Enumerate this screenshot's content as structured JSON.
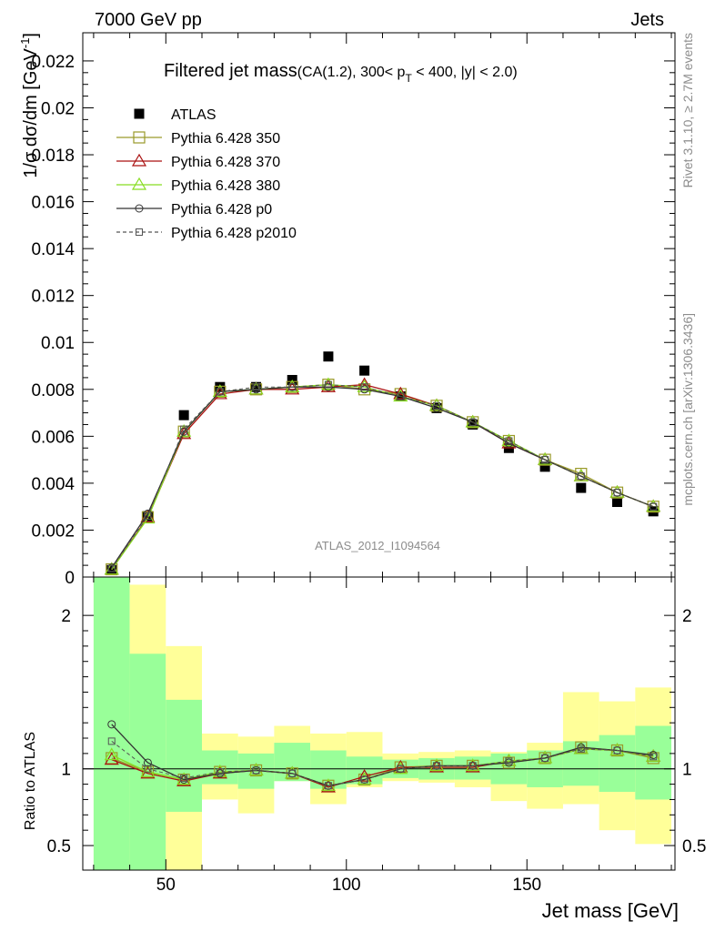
{
  "header": {
    "left": "7000 GeV pp",
    "right": "Jets"
  },
  "side_labels": {
    "rivet": "Rivet 3.1.10, ≥ 2.7M events",
    "mcplots": "mcplots.cern.ch [arXiv:1306.3436]"
  },
  "chart_data": [
    {
      "type": "scatter",
      "title": "Filtered jet mass",
      "title_suffix": "(CA(1.2), 300< p",
      "title_sub": "T",
      "title_tail": " < 400, |y| < 2.0)",
      "watermark": "ATLAS_2012_I1094564",
      "ylabel": "1/σ dσ/dm [GeV",
      "ylabel_sup": "-1",
      "ylabel_tail": "]",
      "xlim": [
        27,
        191
      ],
      "ylim": [
        0,
        0.0232
      ],
      "yticks": [
        {
          "v": 0,
          "label": "0"
        },
        {
          "v": 0.002,
          "label": "0.002"
        },
        {
          "v": 0.004,
          "label": "0.004"
        },
        {
          "v": 0.006,
          "label": "0.006"
        },
        {
          "v": 0.008,
          "label": "0.008"
        },
        {
          "v": 0.01,
          "label": "0.01"
        },
        {
          "v": 0.012,
          "label": "0.012"
        },
        {
          "v": 0.014,
          "label": "0.014"
        },
        {
          "v": 0.016,
          "label": "0.016"
        },
        {
          "v": 0.018,
          "label": "0.018"
        },
        {
          "v": 0.02,
          "label": "0.02"
        },
        {
          "v": 0.022,
          "label": "0.022"
        }
      ],
      "x": [
        35,
        45,
        55,
        65,
        75,
        85,
        95,
        105,
        115,
        125,
        135,
        145,
        155,
        165,
        175,
        185
      ],
      "series": [
        {
          "name": "ATLAS",
          "color": "#000000",
          "marker": "filled-square",
          "line": "none",
          "values": [
            0.0003,
            0.0026,
            0.0069,
            0.0081,
            0.0081,
            0.0084,
            0.0094,
            0.0088,
            0.0077,
            0.0072,
            0.0065,
            0.0055,
            0.0047,
            0.0038,
            0.0032,
            0.0028
          ]
        },
        {
          "name": "Pythia 6.428 350",
          "color": "#9a9a2a",
          "marker": "open-square",
          "line": "solid",
          "values": [
            0.00033,
            0.00255,
            0.0062,
            0.0079,
            0.008,
            0.0081,
            0.0082,
            0.008,
            0.0078,
            0.0073,
            0.0066,
            0.0058,
            0.005,
            0.0044,
            0.0036,
            0.003
          ]
        },
        {
          "name": "Pythia 6.428 370",
          "color": "#aa1111",
          "marker": "open-triangle",
          "line": "solid",
          "values": [
            0.00032,
            0.00255,
            0.0061,
            0.0078,
            0.008,
            0.008,
            0.0081,
            0.0082,
            0.0078,
            0.0073,
            0.0066,
            0.0057,
            0.005,
            0.0043,
            0.0036,
            0.003
          ]
        },
        {
          "name": "Pythia 6.428 380",
          "color": "#88dd22",
          "marker": "open-triangle",
          "line": "solid",
          "values": [
            0.00032,
            0.0025,
            0.0062,
            0.0079,
            0.008,
            0.0081,
            0.0082,
            0.0081,
            0.0077,
            0.0073,
            0.0066,
            0.0058,
            0.005,
            0.0043,
            0.0036,
            0.003
          ]
        },
        {
          "name": "Pythia 6.428 p0",
          "color": "#333333",
          "marker": "open-circle",
          "line": "solid",
          "values": [
            0.0004,
            0.0027,
            0.0062,
            0.0079,
            0.008,
            0.0081,
            0.0081,
            0.008,
            0.0077,
            0.0072,
            0.0066,
            0.0057,
            0.005,
            0.0043,
            0.0036,
            0.003
          ]
        },
        {
          "name": "Pythia 6.428 p2010",
          "color": "#555555",
          "marker": "open-square-small",
          "line": "dashed",
          "values": [
            0.00036,
            0.0026,
            0.0063,
            0.0079,
            0.0081,
            0.0081,
            0.0082,
            0.0081,
            0.0077,
            0.0073,
            0.0066,
            0.0058,
            0.005,
            0.0043,
            0.0036,
            0.003
          ]
        }
      ]
    },
    {
      "type": "line",
      "ylabel": "Ratio to ATLAS",
      "xlabel": "Jet mass [GeV]",
      "xlim": [
        27,
        191
      ],
      "ylim": [
        0.34,
        2.25
      ],
      "xticks": [
        {
          "v": 50,
          "label": "50"
        },
        {
          "v": 100,
          "label": "100"
        },
        {
          "v": 150,
          "label": "150"
        }
      ],
      "yticks": [
        {
          "v": 0.5,
          "label": "0.5"
        },
        {
          "v": 1,
          "label": "1"
        },
        {
          "v": 2,
          "label": "2"
        }
      ],
      "bands": [
        {
          "x0": 30,
          "x1": 40,
          "g_lo": 0.34,
          "g_hi": 2.25,
          "y_lo": 0.34,
          "y_hi": 2.25
        },
        {
          "x0": 40,
          "x1": 50,
          "g_lo": 0.34,
          "g_hi": 1.75,
          "y_lo": 0.34,
          "y_hi": 2.2
        },
        {
          "x0": 50,
          "x1": 60,
          "g_lo": 0.72,
          "g_hi": 1.45,
          "y_lo": 0.34,
          "y_hi": 1.8
        },
        {
          "x0": 60,
          "x1": 70,
          "g_lo": 0.9,
          "g_hi": 1.12,
          "y_lo": 0.8,
          "y_hi": 1.23
        },
        {
          "x0": 70,
          "x1": 80,
          "g_lo": 0.87,
          "g_hi": 1.1,
          "y_lo": 0.71,
          "y_hi": 1.21
        },
        {
          "x0": 80,
          "x1": 90,
          "g_lo": 0.92,
          "g_hi": 1.17,
          "y_lo": 0.92,
          "y_hi": 1.28
        },
        {
          "x0": 90,
          "x1": 100,
          "g_lo": 0.87,
          "g_hi": 1.12,
          "y_lo": 0.77,
          "y_hi": 1.23
        },
        {
          "x0": 100,
          "x1": 110,
          "g_lo": 0.9,
          "g_hi": 1.08,
          "y_lo": 0.88,
          "y_hi": 1.24
        },
        {
          "x0": 110,
          "x1": 120,
          "g_lo": 0.94,
          "g_hi": 1.06,
          "y_lo": 0.92,
          "y_hi": 1.1
        },
        {
          "x0": 120,
          "x1": 130,
          "g_lo": 0.93,
          "g_hi": 1.07,
          "y_lo": 0.91,
          "y_hi": 1.11
        },
        {
          "x0": 130,
          "x1": 140,
          "g_lo": 0.93,
          "g_hi": 1.08,
          "y_lo": 0.88,
          "y_hi": 1.12
        },
        {
          "x0": 140,
          "x1": 150,
          "g_lo": 0.9,
          "g_hi": 1.1,
          "y_lo": 0.79,
          "y_hi": 1.11
        },
        {
          "x0": 150,
          "x1": 160,
          "g_lo": 0.88,
          "g_hi": 1.12,
          "y_lo": 0.74,
          "y_hi": 1.17
        },
        {
          "x0": 160,
          "x1": 170,
          "g_lo": 0.89,
          "g_hi": 1.18,
          "y_lo": 0.77,
          "y_hi": 1.5
        },
        {
          "x0": 170,
          "x1": 180,
          "g_lo": 0.85,
          "g_hi": 1.22,
          "y_lo": 0.6,
          "y_hi": 1.44
        },
        {
          "x0": 180,
          "x1": 190,
          "g_lo": 0.8,
          "g_hi": 1.28,
          "y_lo": 0.51,
          "y_hi": 1.53
        }
      ],
      "x": [
        35,
        45,
        55,
        65,
        75,
        85,
        95,
        105,
        115,
        125,
        135,
        145,
        155,
        165,
        175,
        185
      ],
      "series": [
        {
          "name": "Pythia 6.428 350",
          "color": "#9a9a2a",
          "marker": "open-square",
          "line": "solid",
          "values": [
            1.07,
            0.98,
            0.93,
            0.98,
            0.99,
            0.97,
            0.89,
            0.93,
            1.01,
            1.02,
            1.02,
            1.04,
            1.07,
            1.14,
            1.12,
            1.07
          ]
        },
        {
          "name": "Pythia 6.428 370",
          "color": "#aa1111",
          "marker": "open-triangle",
          "line": "solid",
          "values": [
            1.06,
            0.97,
            0.92,
            0.97,
            0.99,
            0.97,
            0.88,
            0.95,
            1.01,
            1.01,
            1.01,
            1.05,
            1.07,
            1.13,
            1.12,
            1.08
          ]
        },
        {
          "name": "Pythia 6.428 380",
          "color": "#88dd22",
          "marker": "open-triangle",
          "line": "solid",
          "values": [
            1.09,
            0.98,
            0.93,
            0.98,
            0.99,
            0.97,
            0.89,
            0.93,
            1.0,
            1.02,
            1.02,
            1.05,
            1.07,
            1.13,
            1.12,
            1.08
          ]
        },
        {
          "name": "Pythia 6.428 p0",
          "color": "#333333",
          "marker": "open-circle",
          "line": "solid",
          "values": [
            1.29,
            1.04,
            0.93,
            0.97,
            0.99,
            0.97,
            0.89,
            0.93,
            1.0,
            1.02,
            1.02,
            1.04,
            1.07,
            1.14,
            1.12,
            1.09
          ]
        },
        {
          "name": "Pythia 6.428 p2010",
          "color": "#555555",
          "marker": "open-square-small",
          "line": "dashed",
          "values": [
            1.18,
            1.0,
            0.94,
            0.98,
            0.99,
            0.97,
            0.89,
            0.93,
            1.0,
            1.02,
            1.02,
            1.05,
            1.07,
            1.13,
            1.12,
            1.08
          ]
        }
      ]
    }
  ]
}
